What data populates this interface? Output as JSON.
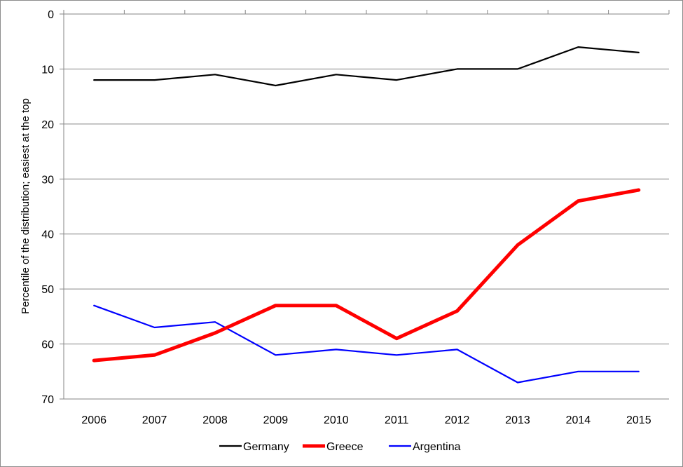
{
  "chart_data": {
    "type": "line",
    "title": "",
    "xlabel": "",
    "ylabel": "Percentile of the distribution; easiest at the top",
    "categories": [
      "2006",
      "2007",
      "2008",
      "2009",
      "2010",
      "2011",
      "2012",
      "2013",
      "2014",
      "2015"
    ],
    "ylim": [
      0,
      70
    ],
    "y_inverted": true,
    "y_ticks": [
      0,
      10,
      20,
      30,
      40,
      50,
      60,
      70
    ],
    "grid": "horizontal",
    "legend": "bottom",
    "series": [
      {
        "name": "Germany",
        "color": "#000000",
        "values": [
          12,
          12,
          11,
          13,
          11,
          12,
          10,
          10,
          6,
          7
        ]
      },
      {
        "name": "Greece",
        "color": "#ff0000",
        "values": [
          63,
          62,
          58,
          53,
          53,
          59,
          54,
          42,
          34,
          32
        ]
      },
      {
        "name": "Argentina",
        "color": "#0000ff",
        "values": [
          53,
          57,
          56,
          62,
          61,
          62,
          61,
          67,
          65,
          65
        ]
      }
    ]
  }
}
